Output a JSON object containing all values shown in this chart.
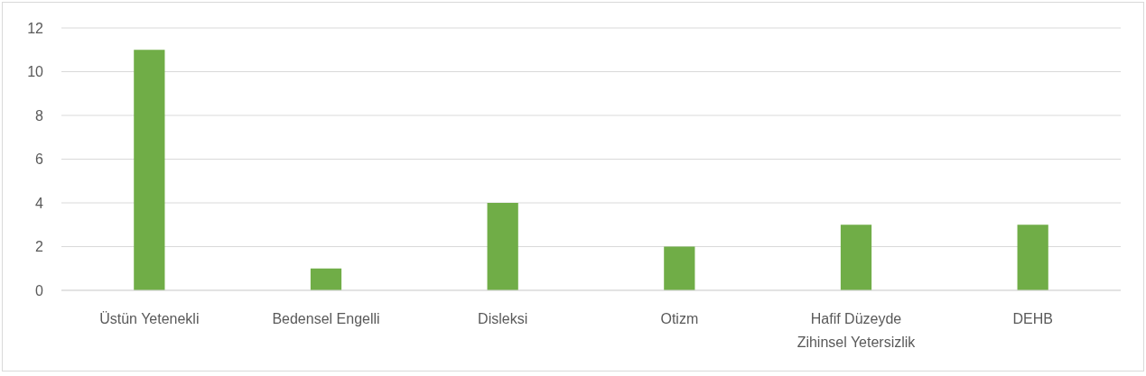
{
  "chart_data": {
    "type": "bar",
    "categories": [
      "Üstün Yetenekli",
      "Bedensel Engelli",
      "Disleksi",
      "Otizm",
      "Hafif Düzeyde Zihinsel Yetersizlik",
      "DEHB"
    ],
    "values": [
      11,
      1,
      4,
      2,
      3,
      3
    ],
    "color": "#70ad47",
    "ylim": [
      0,
      12
    ],
    "yticks": [
      0,
      2,
      4,
      6,
      8,
      10,
      12
    ],
    "grid": "y"
  }
}
